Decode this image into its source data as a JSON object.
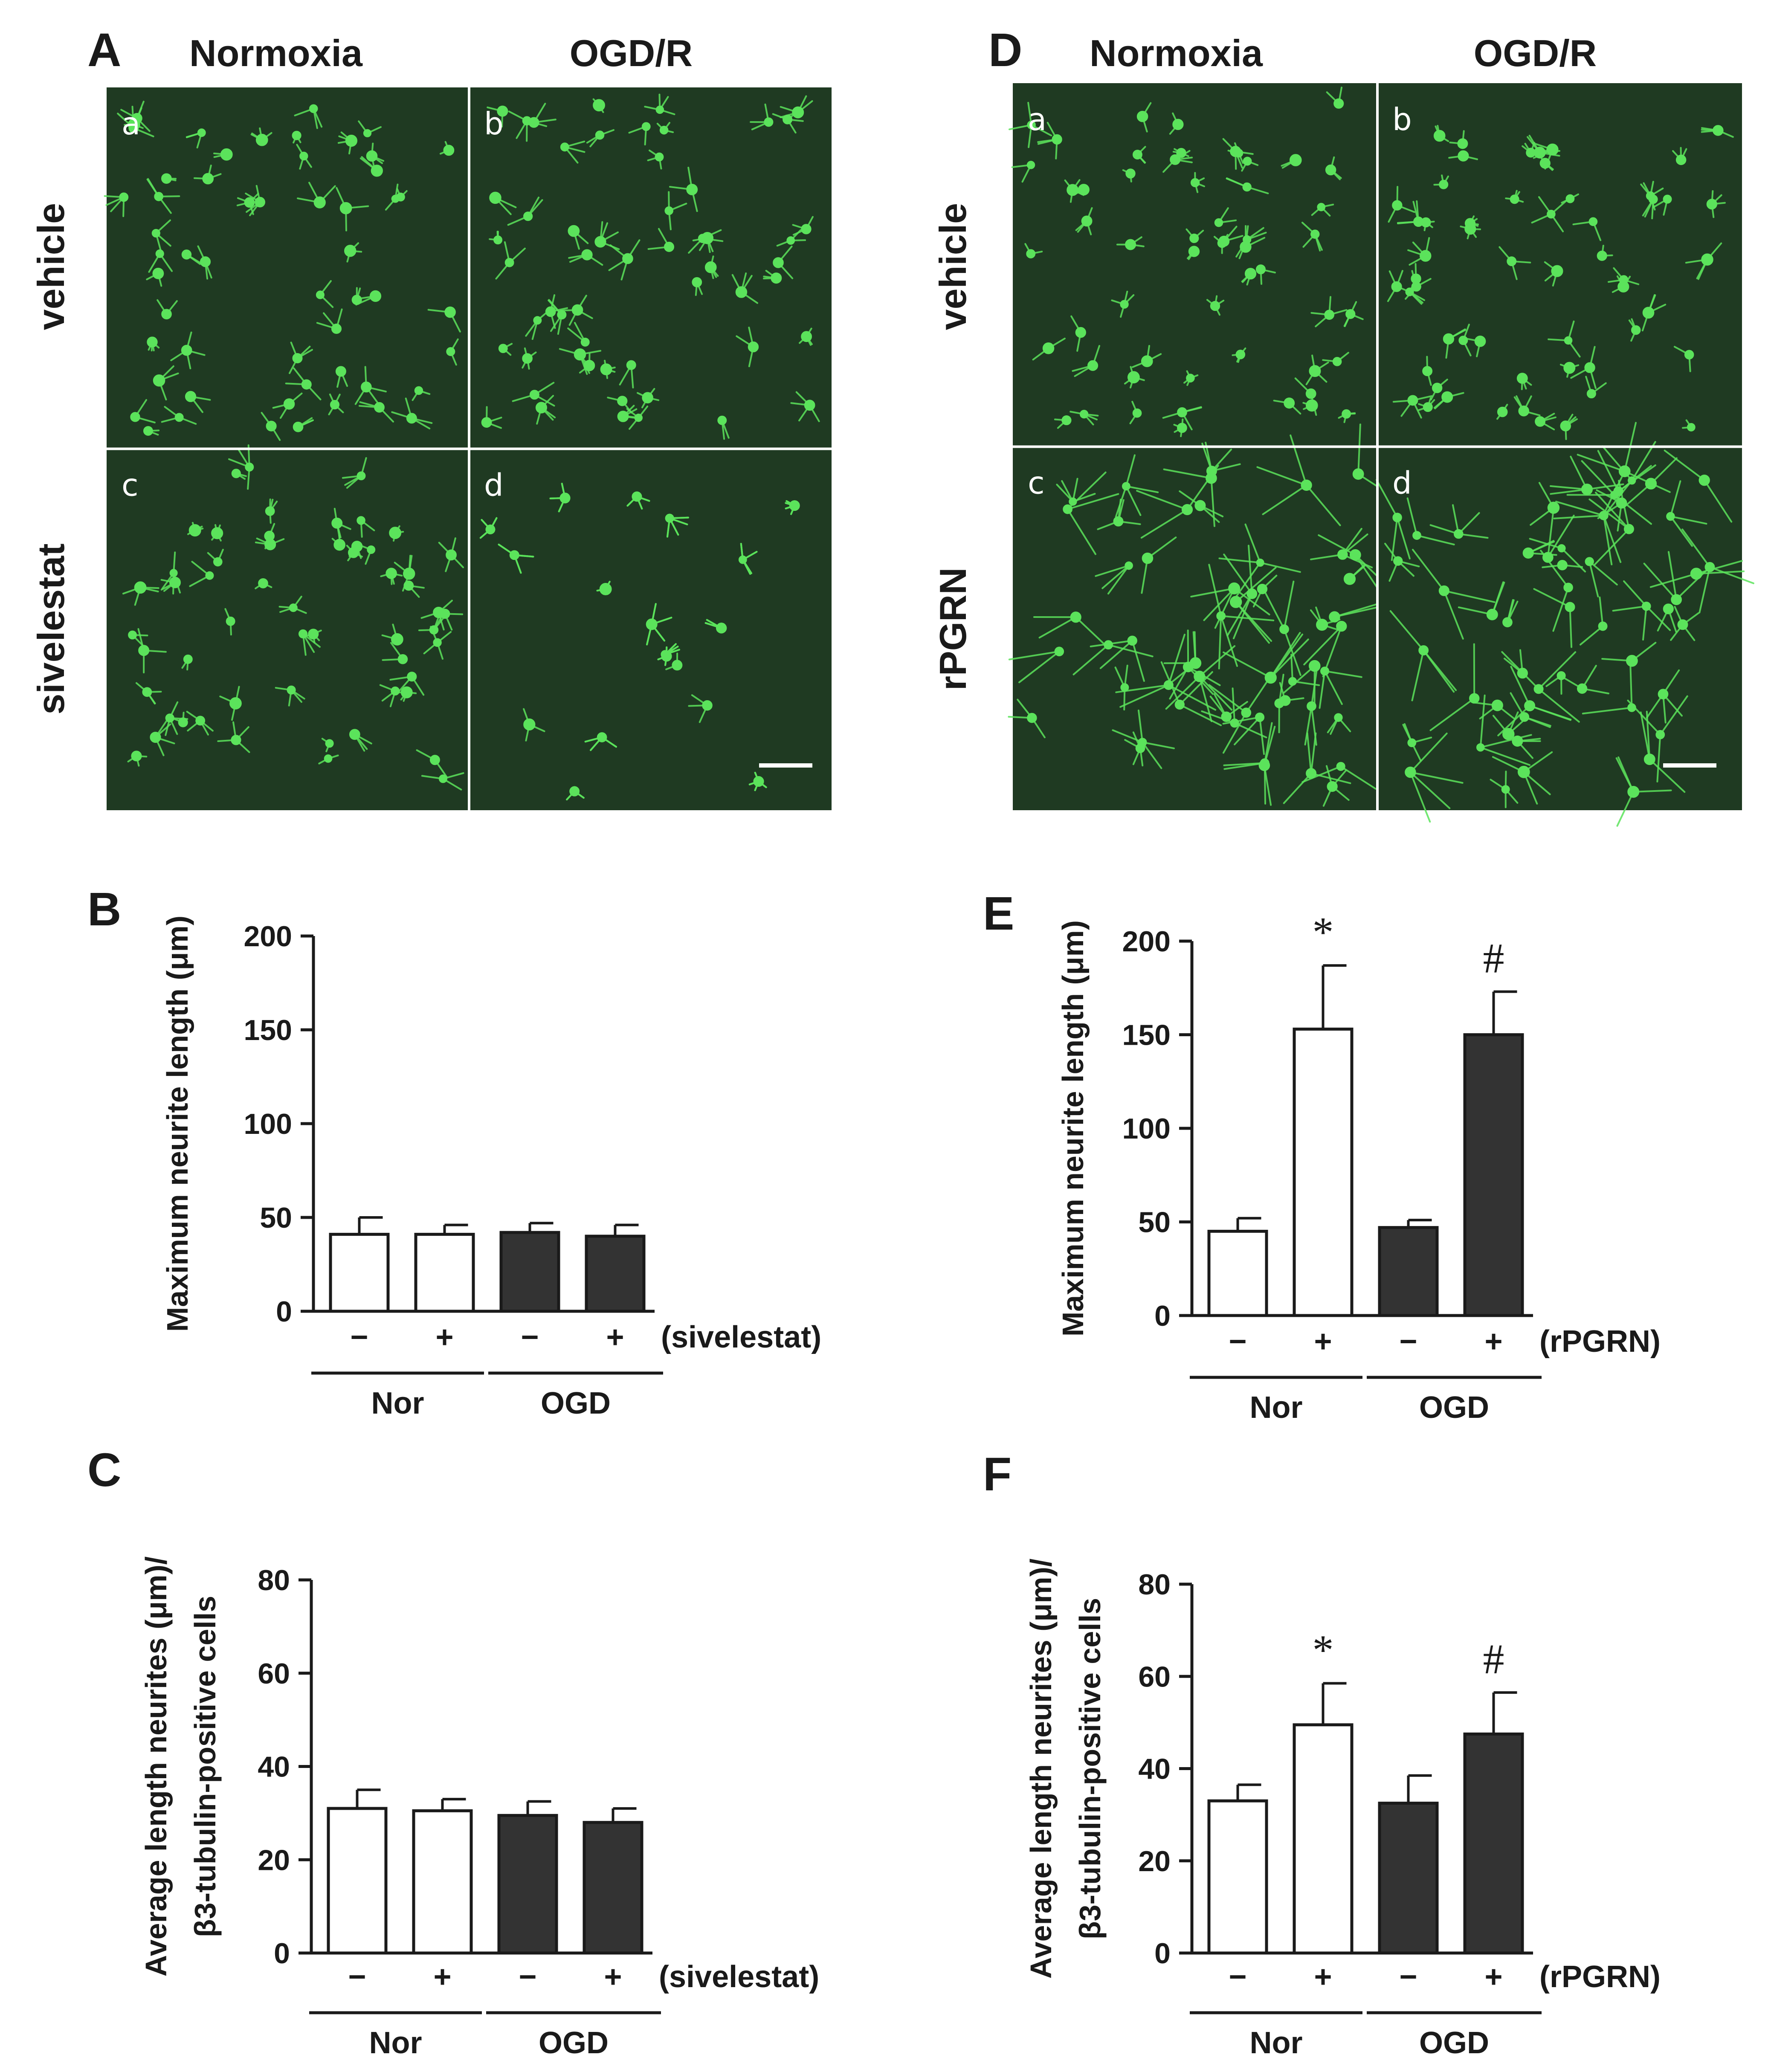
{
  "colors": {
    "bar_open": "#ffffff",
    "bar_filled": "#333333",
    "stroke": "#1a1a1a",
    "micro_bg": "#1f3a22",
    "cell": "#5be35b"
  },
  "panel_A": {
    "letter": "A",
    "col_headers": [
      "Normoxia",
      "OGD/R"
    ],
    "row_labels": [
      "vehicle",
      "sivelestat"
    ],
    "subpanels": [
      "a",
      "b",
      "c",
      "d"
    ]
  },
  "panel_D": {
    "letter": "D",
    "col_headers": [
      "Normoxia",
      "OGD/R"
    ],
    "row_labels": [
      "vehicle",
      "rPGRN"
    ],
    "subpanels": [
      "a",
      "b",
      "c",
      "d"
    ]
  },
  "chart_data": [
    {
      "id": "B",
      "letter": "B",
      "type": "bar",
      "ylabel": "Maximum neurite length (μm)",
      "yticks": [
        0,
        50,
        100,
        150,
        200
      ],
      "ylim": [
        0,
        200
      ],
      "signs": [
        "−",
        "+",
        "−",
        "+"
      ],
      "treatment": "(sivelestat)",
      "groups": [
        "Nor",
        "OGD"
      ],
      "values": [
        41,
        41,
        42,
        40
      ],
      "errors": [
        9,
        5,
        5,
        6
      ],
      "fill": [
        "open",
        "open",
        "filled",
        "filled"
      ],
      "sig": [
        "",
        "",
        "",
        ""
      ]
    },
    {
      "id": "C",
      "letter": "C",
      "type": "bar",
      "ylabel": [
        "Average length neurites (μm)/",
        "β3-tubulin-positive cells"
      ],
      "yticks": [
        0,
        20,
        40,
        60,
        80
      ],
      "ylim": [
        0,
        80
      ],
      "signs": [
        "−",
        "+",
        "−",
        "+"
      ],
      "treatment": "(sivelestat)",
      "groups": [
        "Nor",
        "OGD"
      ],
      "values": [
        31,
        30.5,
        29.5,
        28
      ],
      "errors": [
        4,
        2.5,
        3,
        3
      ],
      "fill": [
        "open",
        "open",
        "filled",
        "filled"
      ],
      "sig": [
        "",
        "",
        "",
        ""
      ]
    },
    {
      "id": "E",
      "letter": "E",
      "type": "bar",
      "ylabel": "Maximum neurite length (μm)",
      "yticks": [
        0,
        50,
        100,
        150,
        200
      ],
      "ylim": [
        0,
        200
      ],
      "signs": [
        "−",
        "+",
        "−",
        "+"
      ],
      "treatment": "(rPGRN)",
      "groups": [
        "Nor",
        "OGD"
      ],
      "values": [
        45,
        153,
        47,
        150
      ],
      "errors": [
        7,
        34,
        4,
        23
      ],
      "fill": [
        "open",
        "open",
        "filled",
        "filled"
      ],
      "sig": [
        "",
        "*",
        "",
        "#"
      ]
    },
    {
      "id": "F",
      "letter": "F",
      "type": "bar",
      "ylabel": [
        "Average length neurites (μm)/",
        "β3-tubulin-positive cells"
      ],
      "yticks": [
        0,
        20,
        40,
        60,
        80
      ],
      "ylim": [
        0,
        80
      ],
      "signs": [
        "−",
        "+",
        "−",
        "+"
      ],
      "treatment": "(rPGRN)",
      "groups": [
        "Nor",
        "OGD"
      ],
      "values": [
        33,
        49.5,
        32.5,
        47.5
      ],
      "errors": [
        3.5,
        9,
        6,
        9
      ],
      "fill": [
        "open",
        "open",
        "filled",
        "filled"
      ],
      "sig": [
        "",
        "*",
        "",
        "#"
      ]
    }
  ]
}
